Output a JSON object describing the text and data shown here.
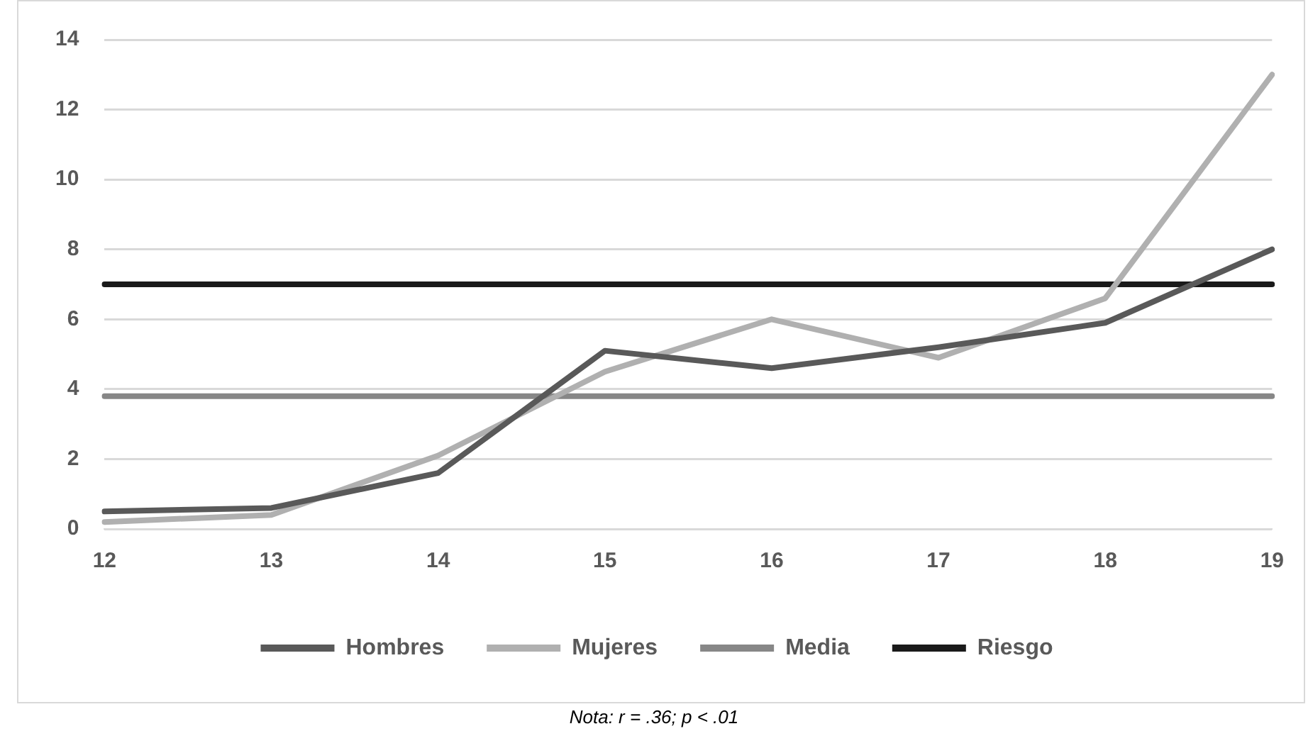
{
  "chart_data": {
    "type": "line",
    "categories": [
      "12",
      "13",
      "14",
      "15",
      "16",
      "17",
      "18",
      "19"
    ],
    "series": [
      {
        "name": "Hombres",
        "color": "#595959",
        "values": [
          0.5,
          0.6,
          1.6,
          5.1,
          4.6,
          5.2,
          5.9,
          8.0
        ]
      },
      {
        "name": "Mujeres",
        "color": "#b0b0b0",
        "values": [
          0.2,
          0.4,
          2.1,
          4.5,
          6.0,
          4.9,
          6.6,
          13.0
        ]
      },
      {
        "name": "Media",
        "color": "#878787",
        "values": [
          3.8,
          3.8,
          3.8,
          3.8,
          3.8,
          3.8,
          3.8,
          3.8
        ]
      },
      {
        "name": "Riesgo",
        "color": "#1a1a1a",
        "values": [
          7.0,
          7.0,
          7.0,
          7.0,
          7.0,
          7.0,
          7.0,
          7.0
        ]
      }
    ],
    "ylim": [
      0,
      14
    ],
    "yticks": [
      0,
      2,
      4,
      6,
      8,
      10,
      12,
      14
    ],
    "grid": "y",
    "legend": "bottom",
    "marker": "none",
    "line_style": "solid",
    "annotations": [
      "Nota: r = .36; p < .01"
    ]
  }
}
